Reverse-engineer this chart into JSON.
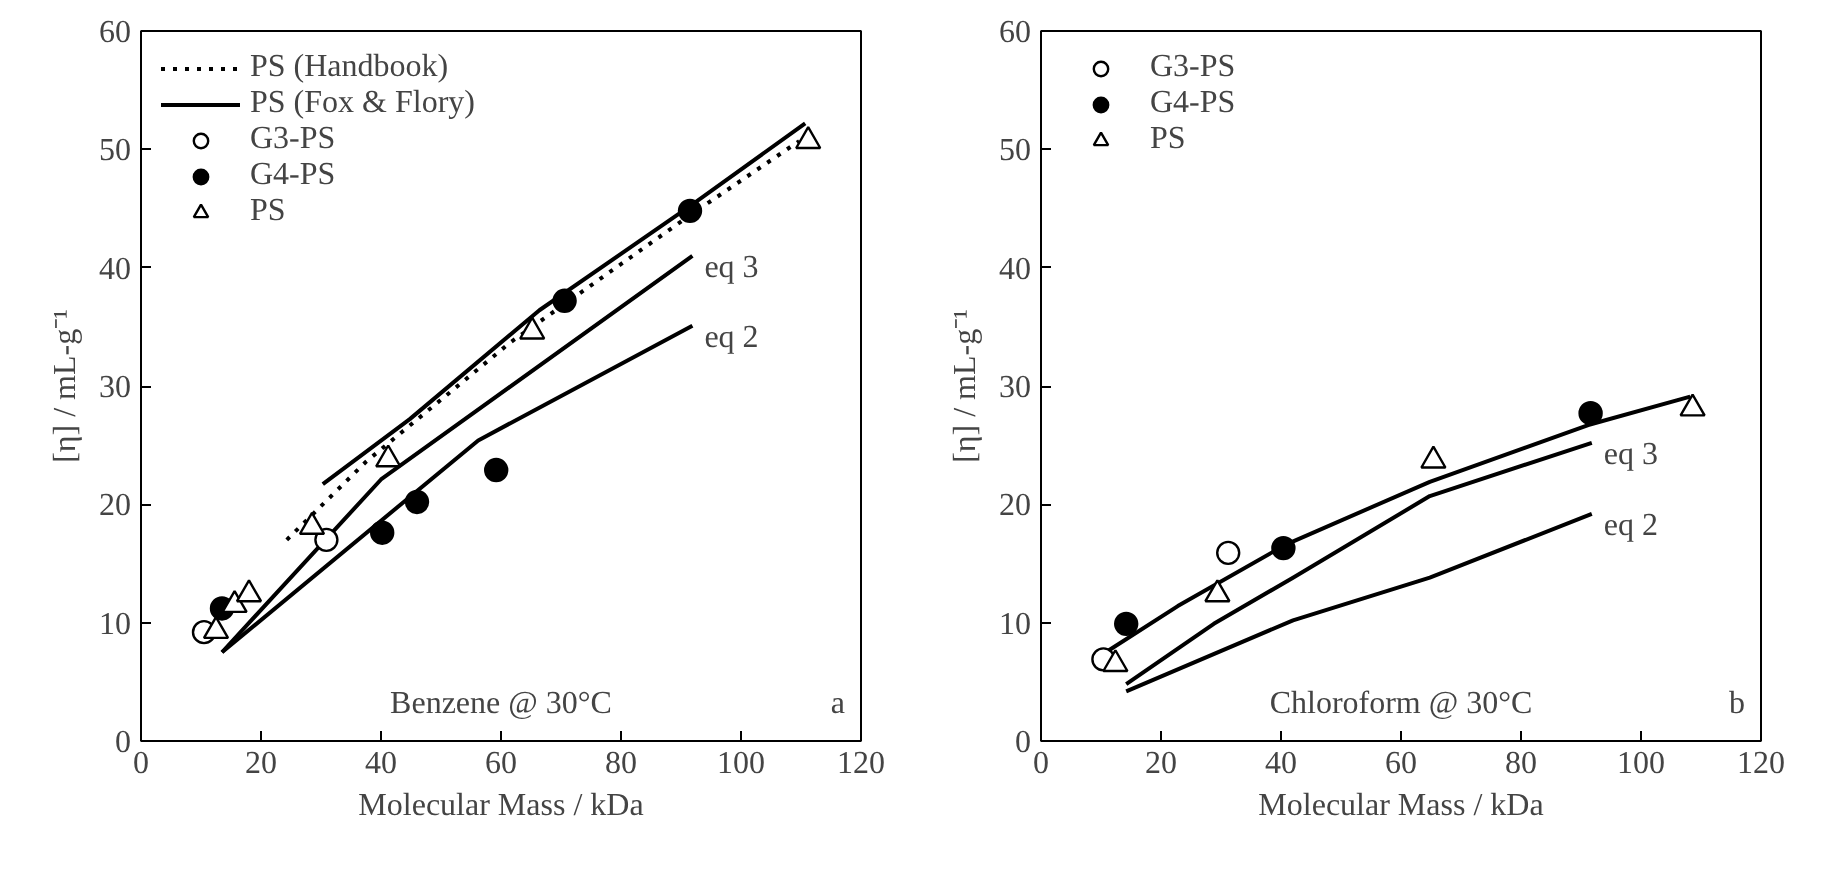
{
  "chart_data": [
    {
      "type": "scatter",
      "xlabel": "Molecular Mass / kDa",
      "ylabel": "[η] / mL-g⁻¹",
      "xlim": [
        0,
        120
      ],
      "ylim": [
        0,
        60
      ],
      "xticks": [
        0,
        20,
        40,
        60,
        80,
        100,
        120
      ],
      "yticks": [
        0,
        10,
        20,
        30,
        40,
        50,
        60
      ],
      "legend": "top left",
      "grid": false,
      "annotations": [
        "eq 3",
        "eq 2",
        "Benzene @ 30°C",
        "a"
      ],
      "series": [
        {
          "name": "PS (Handbook)",
          "type": "line",
          "line_style": "dotted",
          "color": "#000000",
          "x": [
            24.3,
            37.5,
            61.6,
            91.7,
            109.7
          ],
          "values": [
            17.0,
            23.6,
            33.7,
            44.5,
            50.7
          ]
        },
        {
          "name": "PS (Fox & Flory)",
          "type": "line",
          "line_style": "solid",
          "color": "#000000",
          "x": [
            30.3,
            44.8,
            66.4,
            91.5,
            110.7
          ],
          "values": [
            21.7,
            27.2,
            36.4,
            45.2,
            52.2
          ]
        },
        {
          "type": "line",
          "line_style": "solid",
          "color": "#000000",
          "x": [
            13.5,
            40,
            91.9
          ],
          "values": [
            7.5,
            22.1,
            41.0
          ]
        },
        {
          "type": "line",
          "line_style": "solid",
          "color": "#000000",
          "x": [
            13.5,
            56.2,
            91.9
          ],
          "values": [
            7.5,
            25.4,
            35.1
          ]
        },
        {
          "name": "G3-PS",
          "marker": "circle",
          "color": "#ffffff",
          "x": [
            10.5,
            30.9
          ],
          "values": [
            9.2,
            17.0
          ]
        },
        {
          "name": "G4-PS",
          "marker": "circle",
          "color": "#000000",
          "x": [
            13.5,
            40.2,
            46,
            59.2,
            70.6,
            91.5
          ],
          "values": [
            11.2,
            17.6,
            20.2,
            22.9,
            37.2,
            44.8
          ]
        },
        {
          "name": "PS",
          "marker": "triangle",
          "color": "#ffffff",
          "x": [
            12.5,
            15.6,
            18,
            28.5,
            41.2,
            65.2,
            111.2
          ],
          "values": [
            9.3,
            11.5,
            12.4,
            18.1,
            23.8,
            34.6,
            50.7
          ]
        }
      ]
    },
    {
      "type": "scatter",
      "xlabel": "Molecular Mass / kDa",
      "ylabel": "[η] / mL-g⁻¹",
      "xlim": [
        0,
        120
      ],
      "ylim": [
        0,
        60
      ],
      "xticks": [
        0,
        20,
        40,
        60,
        80,
        100,
        120
      ],
      "yticks": [
        0,
        10,
        20,
        30,
        40,
        50,
        60
      ],
      "legend": "top left",
      "grid": false,
      "annotations": [
        "eq 3",
        "eq 2",
        "Chloroform @ 30°C",
        "b"
      ],
      "series": [
        {
          "type": "line",
          "line_style": "solid",
          "color": "#000000",
          "x": [
            10.8,
            22.8,
            40.8,
            64.8,
            91.2,
            108.2
          ],
          "values": [
            7.5,
            11.4,
            16.6,
            21.9,
            26.7,
            29.1
          ]
        },
        {
          "type": "line",
          "line_style": "solid",
          "color": "#000000",
          "x": [
            14.2,
            28.8,
            42,
            64.8,
            91.8
          ],
          "values": [
            4.8,
            9.9,
            13.8,
            20.7,
            25.2
          ]
        },
        {
          "type": "line",
          "line_style": "solid",
          "color": "#000000",
          "x": [
            14.2,
            42,
            64.8,
            91.8
          ],
          "values": [
            4.2,
            10.2,
            13.8,
            19.2
          ]
        },
        {
          "name": "G3-PS",
          "marker": "circle",
          "color": "#ffffff",
          "x": [
            10.4,
            31.2
          ],
          "values": [
            6.9,
            15.9
          ]
        },
        {
          "name": "G4-PS",
          "marker": "circle",
          "color": "#000000",
          "x": [
            14.2,
            40.4,
            91.6
          ],
          "values": [
            9.9,
            16.3,
            27.7
          ]
        },
        {
          "name": "PS",
          "marker": "triangle",
          "color": "#ffffff",
          "x": [
            12.4,
            29.4,
            65.4,
            108.6
          ],
          "values": [
            6.5,
            12.4,
            23.7,
            28.1
          ]
        }
      ]
    }
  ]
}
